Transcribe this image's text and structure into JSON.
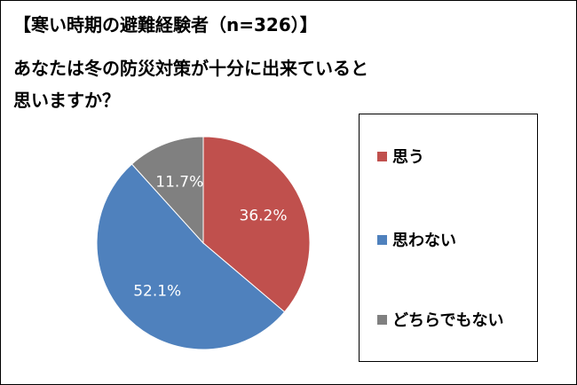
{
  "title": {
    "line1": "【寒い時期の避難経験者（n=326）】",
    "line2": "あなたは冬の防災対策が十分に出来ていると",
    "line3": "思いますか？"
  },
  "chart_data": {
    "type": "pie",
    "slices": [
      {
        "label": "思う",
        "value": 36.2,
        "display": "36.2%",
        "color": "#c0504d"
      },
      {
        "label": "思わない",
        "value": 52.1,
        "display": "52.1%",
        "color": "#4f81bd"
      },
      {
        "label": "どちらでもない",
        "value": 11.7,
        "display": "11.7%",
        "color": "#808080"
      }
    ],
    "legend_position": "right"
  }
}
